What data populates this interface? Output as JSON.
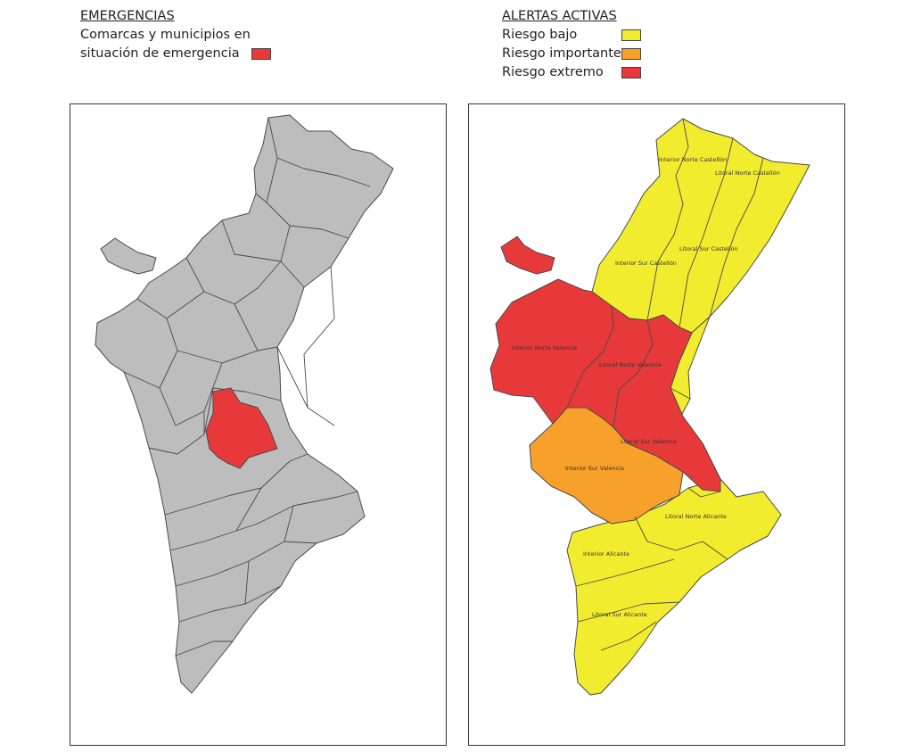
{
  "legend_emergencias": {
    "title": "EMERGENCIAS",
    "line1": "Comarcas y municipios en",
    "line2": "situación de emergencia",
    "swatch_color": "#e8393a"
  },
  "legend_alertas": {
    "title": "ALERTAS ACTIVAS",
    "items": [
      {
        "label": "Riesgo bajo",
        "color": "#f2ec2e"
      },
      {
        "label": "Riesgo importante",
        "color": "#f7a02a"
      },
      {
        "label": "Riesgo extremo",
        "color": "#e8393a"
      }
    ]
  },
  "colors": {
    "map_gray": "#bdbdbd",
    "border": "#4a4a4a",
    "emergency_red": "#e8393a",
    "low_yellow": "#f2ec2e",
    "important_orange": "#f7a02a",
    "extreme_red": "#e8393a"
  },
  "zones": [
    {
      "label": "Interior Norte Castellón",
      "level": "Riesgo bajo"
    },
    {
      "label": "Litoral Norte Castellón",
      "level": "Riesgo bajo"
    },
    {
      "label": "Litoral Sur Castellón",
      "level": "Riesgo bajo"
    },
    {
      "label": "Interior Sur Castellón",
      "level": "Riesgo bajo"
    },
    {
      "label": "Interior Norte Valencia",
      "level": "Riesgo extremo"
    },
    {
      "label": "Litoral Norte Valencia",
      "level": "Riesgo extremo"
    },
    {
      "label": "Litoral Sur Valencia",
      "level": "Riesgo extremo"
    },
    {
      "label": "Interior Sur Valencia",
      "level": "Riesgo importante"
    },
    {
      "label": "Litoral Norte Alicante",
      "level": "Riesgo bajo"
    },
    {
      "label": "Interior Alicante",
      "level": "Riesgo bajo"
    },
    {
      "label": "Litoral Sur Alicante",
      "level": "Riesgo bajo"
    }
  ]
}
